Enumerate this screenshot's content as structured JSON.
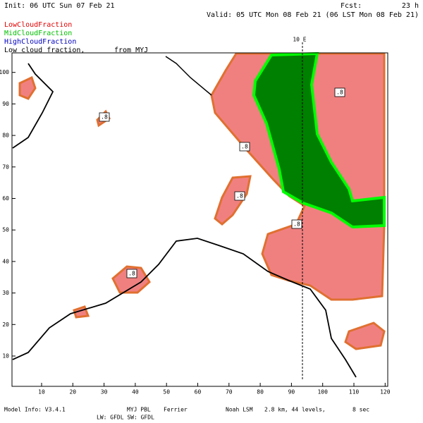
{
  "header": {
    "init": "Init: 06 UTC Sun 07 Feb 21",
    "fcst_label": "Fcst:",
    "fcst_value": "23 h",
    "valid": "Valid: 05 UTC Mon 08 Feb 21 (06 LST Mon 08 Feb 21)"
  },
  "legend": {
    "items": [
      "LowCloudFraction",
      "MidCloudFraction",
      "HighCloudFraction"
    ],
    "description": [
      "Low cloud fraction,",
      "from MYJ"
    ]
  },
  "map": {
    "meridian_label": "10 E",
    "contour_labels": [
      ".8",
      ".8",
      ".8",
      ".8",
      ".8",
      ".8"
    ],
    "x_ticks": [
      "10",
      "20",
      "30",
      "40",
      "50",
      "60",
      "70",
      "80",
      "90",
      "100",
      "110",
      "120"
    ],
    "y_ticks": [
      "10",
      "20",
      "30",
      "40",
      "50",
      "60",
      "70",
      "80",
      "90",
      "100"
    ]
  },
  "footer": {
    "model_info": "Model Info: V3.4.1",
    "pbl": "MYJ PBL",
    "micro": "Ferrier",
    "lsm": "Noah LSM",
    "grid": "2.8 km, 44 levels,",
    "step": "8 sec",
    "radiation": "LW: GFDL SW: GFDL"
  }
}
